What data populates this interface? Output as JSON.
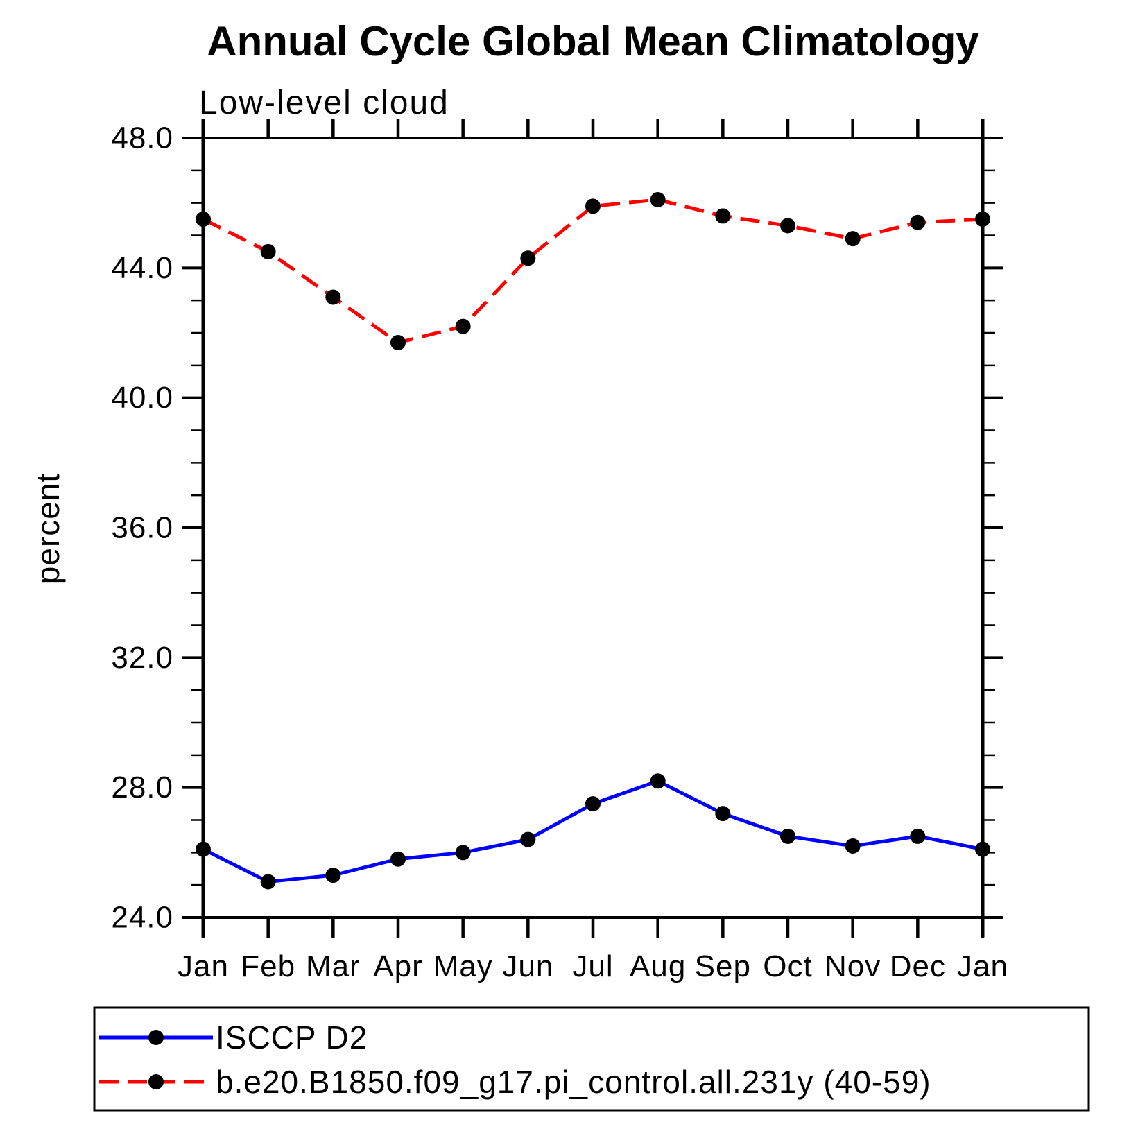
{
  "figure": {
    "background": "#ffffff"
  },
  "chart_data": {
    "type": "line",
    "title": "Annual Cycle Global Mean Climatology",
    "subtitle": "Low-level cloud",
    "ylabel": "percent",
    "xlabel": "",
    "categories": [
      "Jan",
      "Feb",
      "Mar",
      "Apr",
      "May",
      "Jun",
      "Jul",
      "Aug",
      "Sep",
      "Oct",
      "Nov",
      "Dec",
      "Jan"
    ],
    "ylim": [
      24.0,
      48.0
    ],
    "ytick_major_labels": [
      "24.0",
      "28.0",
      "32.0",
      "36.0",
      "40.0",
      "44.0",
      "48.0"
    ],
    "ytick_minor_step": 1.0,
    "grid": false,
    "legend_position": "bottom-left-box",
    "axis_color": "#000000",
    "series": [
      {
        "name": "ISCCP D2",
        "line_color": "#0000ff",
        "line_style": "solid",
        "marker": "filled-circle",
        "marker_color": "#000000",
        "values": [
          26.1,
          25.1,
          25.3,
          25.8,
          26.0,
          26.4,
          27.5,
          28.2,
          27.2,
          26.5,
          26.2,
          26.5,
          26.1
        ]
      },
      {
        "name": "b.e20.B1850.f09_g17.pi_control.all.231y (40-59)",
        "line_color": "#ff0000",
        "line_style": "dashed",
        "marker": "filled-circle",
        "marker_color": "#000000",
        "values": [
          45.5,
          44.5,
          43.1,
          41.7,
          42.2,
          44.3,
          45.9,
          46.1,
          45.6,
          45.3,
          44.9,
          45.4,
          45.5
        ]
      }
    ]
  }
}
